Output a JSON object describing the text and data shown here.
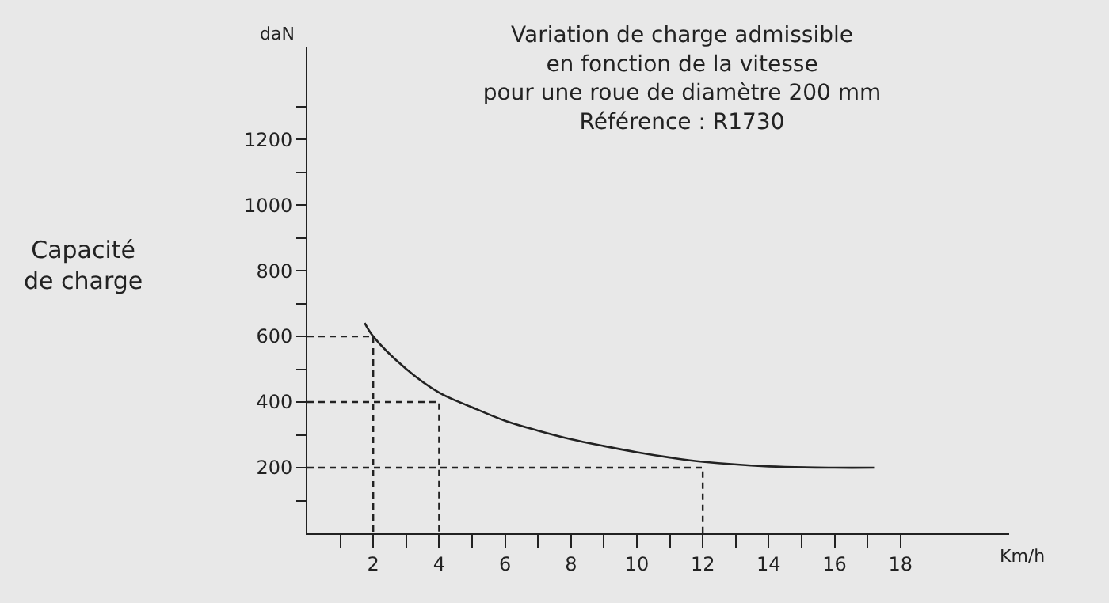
{
  "chart_data": {
    "type": "line",
    "title": "Variation de charge admissible\nen fonction de la vitesse\npour une roue de diamètre 200 mm\nRéférence : R1730",
    "xlabel": "Km/h",
    "ylabel": "daN",
    "annotations": [
      "Capacité\nde charge"
    ],
    "series": [
      {
        "color": "#222222",
        "x": [
          1.74,
          2,
          3,
          4,
          5,
          6,
          7,
          8,
          9,
          10,
          11,
          12,
          14,
          16,
          17.2
        ],
        "values": [
          641,
          600,
          501,
          429,
          384,
          343,
          313,
          287,
          266,
          247,
          231,
          218,
          204,
          200,
          200
        ],
        "line_style": "solid"
      },
      {
        "color": "#222222",
        "x": [
          0,
          2,
          2
        ],
        "values": [
          600,
          600,
          0
        ],
        "line_style": "dashed"
      },
      {
        "color": "#222222",
        "x": [
          0,
          4,
          4
        ],
        "values": [
          400,
          400,
          0
        ],
        "line_style": "dashed"
      },
      {
        "color": "#222222",
        "x": [
          0,
          12,
          12
        ],
        "values": [
          200,
          200,
          0
        ],
        "line_style": "dashed"
      }
    ],
    "xlim": [
      0,
      21.3
    ],
    "ylim": [
      0,
      1480
    ],
    "xticks": [
      {
        "value": 1,
        "label": null
      },
      2,
      {
        "value": 3,
        "label": null
      },
      4,
      {
        "value": 5,
        "label": null
      },
      6,
      {
        "value": 7,
        "label": null
      },
      8,
      {
        "value": 9,
        "label": null
      },
      10,
      {
        "value": 11,
        "label": null
      },
      12,
      {
        "value": 13,
        "label": null
      },
      14,
      {
        "value": 15,
        "label": null
      },
      16,
      {
        "value": 17,
        "label": null
      },
      18
    ],
    "yticks": [
      {
        "value": 100,
        "label": null
      },
      200,
      {
        "value": 300,
        "label": null
      },
      400,
      {
        "value": 500,
        "label": null
      },
      600,
      {
        "value": 700,
        "label": null
      },
      800,
      {
        "value": 900,
        "label": null
      },
      1000,
      {
        "value": 1100,
        "label": null
      },
      1200,
      {
        "value": 1300,
        "label": null
      }
    ],
    "grid": false,
    "marker": "none"
  }
}
